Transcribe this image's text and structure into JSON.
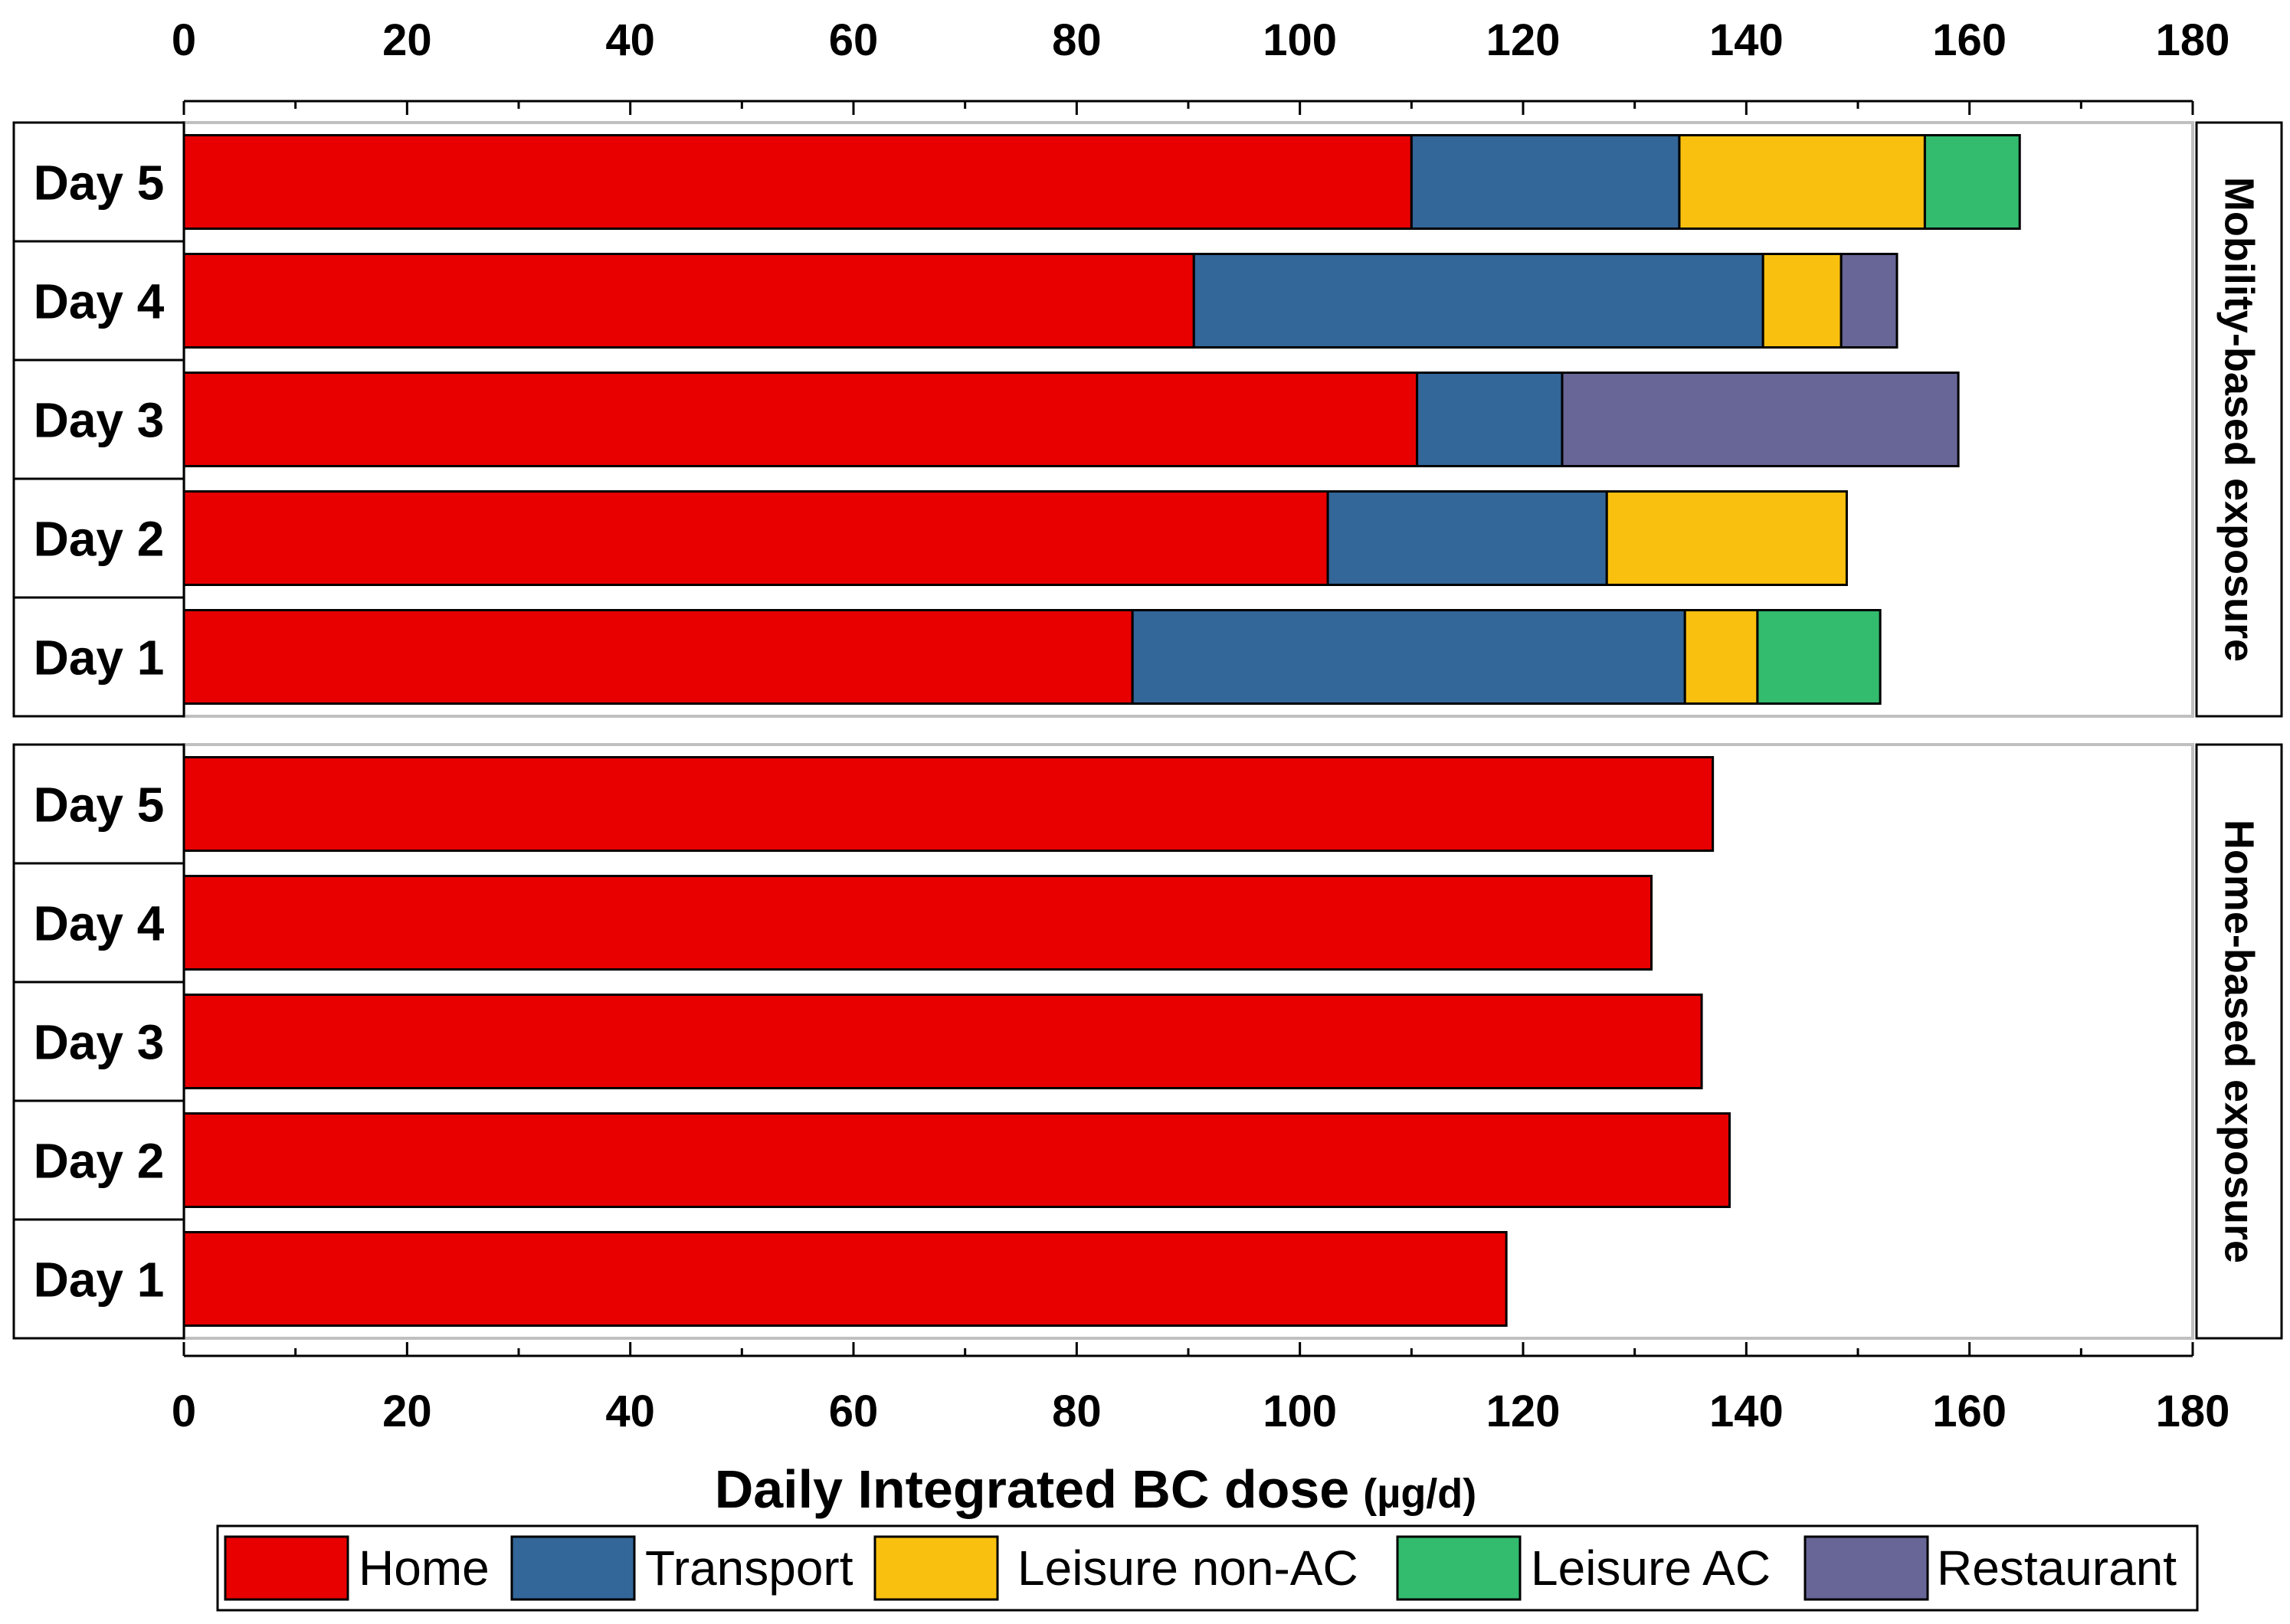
{
  "chart_data": {
    "type": "bar",
    "orientation": "horizontal",
    "stacked": true,
    "xlabel": "Daily Integrated BC dose",
    "xlabel_unit": "(µg/d)",
    "xlim": [
      0,
      180
    ],
    "xticks": [
      "0",
      "20",
      "40",
      "60",
      "80",
      "100",
      "120",
      "140",
      "160",
      "180"
    ],
    "series_names": [
      "Home",
      "Transport",
      "Leisure non-AC",
      "Leisure AC",
      "Restaurant"
    ],
    "colors": {
      "Home": "#e80000",
      "Transport": "#336699",
      "Leisure non-AC": "#f9c00f",
      "Leisure AC": "#33bb6e",
      "Restaurant": "#686597"
    },
    "legend_position": "bottom",
    "panels": [
      {
        "strip_label": "Mobility-based exposure",
        "days": [
          {
            "label": "Day 5",
            "values": {
              "Home": 110,
              "Transport": 24,
              "Leisure non-AC": 22,
              "Leisure AC": 8.5,
              "Restaurant": 0
            }
          },
          {
            "label": "Day 4",
            "values": {
              "Home": 90.5,
              "Transport": 51,
              "Leisure non-AC": 7,
              "Leisure AC": 0,
              "Restaurant": 5
            }
          },
          {
            "label": "Day 3",
            "values": {
              "Home": 110.5,
              "Transport": 13,
              "Leisure non-AC": 0,
              "Leisure AC": 0,
              "Restaurant": 35.5
            }
          },
          {
            "label": "Day 2",
            "values": {
              "Home": 102.5,
              "Transport": 25,
              "Leisure non-AC": 21.5,
              "Leisure AC": 0,
              "Restaurant": 0
            }
          },
          {
            "label": "Day 1",
            "values": {
              "Home": 85,
              "Transport": 49.5,
              "Leisure non-AC": 6.5,
              "Leisure AC": 11,
              "Restaurant": 0
            }
          }
        ]
      },
      {
        "strip_label": "Home-based exposure",
        "days": [
          {
            "label": "Day 5",
            "values": {
              "Home": 137,
              "Transport": 0,
              "Leisure non-AC": 0,
              "Leisure AC": 0,
              "Restaurant": 0
            }
          },
          {
            "label": "Day 4",
            "values": {
              "Home": 131.5,
              "Transport": 0,
              "Leisure non-AC": 0,
              "Leisure AC": 0,
              "Restaurant": 0
            }
          },
          {
            "label": "Day 3",
            "values": {
              "Home": 136,
              "Transport": 0,
              "Leisure non-AC": 0,
              "Leisure AC": 0,
              "Restaurant": 0
            }
          },
          {
            "label": "Day 2",
            "values": {
              "Home": 138.5,
              "Transport": 0,
              "Leisure non-AC": 0,
              "Leisure AC": 0,
              "Restaurant": 0
            }
          },
          {
            "label": "Day 1",
            "values": {
              "Home": 118.5,
              "Transport": 0,
              "Leisure non-AC": 0,
              "Leisure AC": 0,
              "Restaurant": 0
            }
          }
        ]
      }
    ]
  }
}
